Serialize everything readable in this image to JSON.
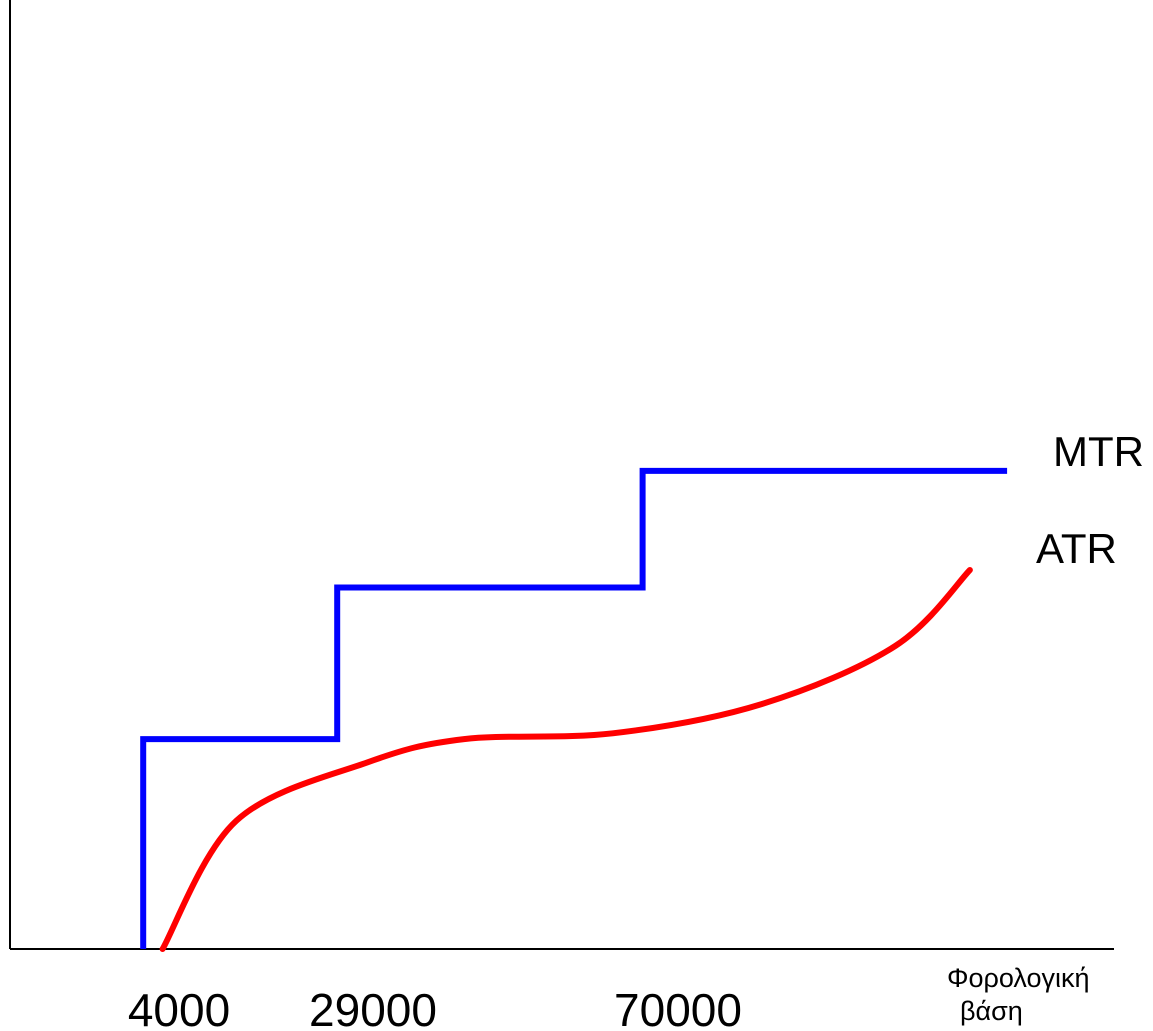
{
  "chart_data": {
    "type": "line",
    "title": "",
    "xlabel_lines": [
      "Φορολογική",
      "βάση"
    ],
    "ylabel": "",
    "x_ticks": [
      4000,
      29000,
      70000
    ],
    "x_tick_labels": [
      "4000",
      "29000",
      "70000"
    ],
    "xlim": [
      0,
      130000
    ],
    "ylim": [
      0,
      1
    ],
    "grid": false,
    "legend": "none",
    "series": [
      {
        "name": "MTR",
        "color": "#0000ff",
        "shape": "step",
        "points": [
          [
            3000,
            0.0
          ],
          [
            3000,
            0.36
          ],
          [
            28000,
            0.36
          ],
          [
            28000,
            0.62
          ],
          [
            69000,
            0.62
          ],
          [
            69000,
            0.82
          ],
          [
            118000,
            0.82
          ]
        ]
      },
      {
        "name": "ATR",
        "color": "#ff0000",
        "shape": "curve",
        "points": [
          [
            5500,
            0.0
          ],
          [
            15000,
            0.22
          ],
          [
            32000,
            0.32
          ],
          [
            45000,
            0.36
          ],
          [
            65000,
            0.37
          ],
          [
            85000,
            0.42
          ],
          [
            103000,
            0.52
          ],
          [
            113000,
            0.65
          ]
        ]
      }
    ]
  }
}
